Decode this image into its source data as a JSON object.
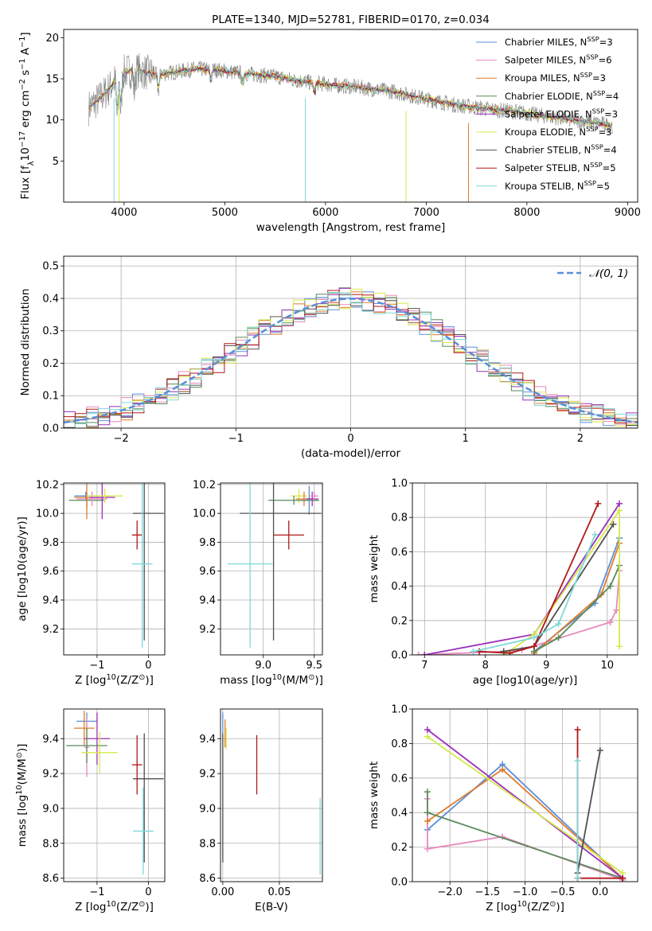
{
  "chart_data": [
    {
      "id": "spectrum",
      "type": "line",
      "title": "PLATE=1340, MJD=52781, FIBERID=0170, z=0.034",
      "xlabel": "wavelength [Angstrom, rest frame]",
      "ylabel_parts": [
        "Flux [f",
        "λ",
        "10",
        "−17",
        " erg cm",
        "−2",
        " s",
        "−1",
        " A",
        "−1",
        "]"
      ],
      "xlim": [
        3400,
        9100
      ],
      "ylim": [
        0,
        21
      ],
      "xticks": [
        4000,
        5000,
        6000,
        7000,
        8000,
        9000
      ],
      "yticks": [
        5,
        10,
        15,
        20
      ],
      "legend_position": "top-right",
      "continuum": {
        "x": [
          3650,
          3750,
          3850,
          3950,
          4050,
          4150,
          4300,
          4500,
          4700,
          4900,
          5100,
          5300,
          5500,
          5700,
          5900,
          6100,
          6300,
          6500,
          6700,
          6900,
          7100,
          7300,
          7500,
          7700,
          7900,
          8100,
          8300,
          8500,
          8700,
          8850
        ],
        "y": [
          11.5,
          12.5,
          13.8,
          15.5,
          16.0,
          16.0,
          15.5,
          15.8,
          16.2,
          16.1,
          15.8,
          15.5,
          15.3,
          14.8,
          14.5,
          14.2,
          14.0,
          13.7,
          13.4,
          12.8,
          12.3,
          11.8,
          11.5,
          11.2,
          11.0,
          10.6,
          10.3,
          9.9,
          9.6,
          9.3
        ]
      },
      "series": [
        {
          "name_parts": [
            "Chabrier MILES, N",
            "SSP",
            "=3"
          ],
          "color": "#5b8fd9"
        },
        {
          "name_parts": [
            "Salpeter MILES, N",
            "SSP",
            "=6"
          ],
          "color": "#e888be"
        },
        {
          "name_parts": [
            "Kroupa MILES, N",
            "SSP",
            "=3"
          ],
          "color": "#e07b2a"
        },
        {
          "name_parts": [
            "Chabrier ELODIE, N",
            "SSP",
            "=4"
          ],
          "color": "#5a8a5a"
        },
        {
          "name_parts": [
            "Salpeter ELODIE, N",
            "SSP",
            "=3"
          ],
          "color": "#9b30b8"
        },
        {
          "name_parts": [
            "Kroupa ELODIE, N",
            "SSP",
            "=3"
          ],
          "color": "#d7e84a"
        },
        {
          "name_parts": [
            "Chabrier STELIB, N",
            "SSP",
            "=4"
          ],
          "color": "#505050"
        },
        {
          "name_parts": [
            "Salpeter STELIB, N",
            "SSP",
            "=5"
          ],
          "color": "#b01818"
        },
        {
          "name_parts": [
            "Kroupa STELIB, N",
            "SSP",
            "=5"
          ],
          "color": "#7fd8d8"
        }
      ]
    },
    {
      "id": "residuals",
      "type": "histogram",
      "xlabel": "(data-model)/error",
      "ylabel": "Normed distribution",
      "xlim": [
        -2.5,
        2.5
      ],
      "ylim": [
        0,
        0.53
      ],
      "xticks": [
        -2,
        -1,
        0,
        1,
        2
      ],
      "yticks": [
        0.0,
        0.1,
        0.2,
        0.3,
        0.4,
        0.5
      ],
      "grid": true,
      "legend_position": "top-right",
      "legend": "𝒩(0, 1)",
      "bin_width": 0.1,
      "bin_start": -2.5,
      "reference_curve": {
        "name": "𝒩(0, 1)",
        "mean": 0,
        "sd": 1,
        "color": "#5b8fd9"
      }
    },
    {
      "id": "age_vs_Z",
      "type": "errorbar",
      "xlabel_parts": [
        "Z [log",
        "10",
        "(Z/Z",
        "⊙",
        ")]"
      ],
      "ylabel": "age  [log10(age/yr)]",
      "xlim": [
        -1.65,
        0.32
      ],
      "ylim": [
        9.02,
        10.21
      ],
      "xticks": [
        -1,
        0
      ],
      "yticks": [
        9.2,
        9.4,
        9.6,
        9.8,
        10.0,
        10.2
      ],
      "grid": true,
      "points": [
        {
          "x": -1.2,
          "y": 10.09,
          "xerr": 0.35,
          "yerr": 0.05,
          "color": "#5a8a5a"
        },
        {
          "x": -1.22,
          "y": 10.12,
          "xerr": 0.22,
          "yerr": 0.03,
          "color": "#5b8fd9"
        },
        {
          "x": -1.1,
          "y": 10.1,
          "xerr": 0.3,
          "yerr": 0.05,
          "color": "#e888be"
        },
        {
          "x": -1.2,
          "y": 10.11,
          "xerr": 0.25,
          "yerr": 0.15,
          "color": "#e07b2a"
        },
        {
          "x": -0.9,
          "y": 10.11,
          "xerr": 0.25,
          "yerr": 0.15,
          "color": "#9b30b8"
        },
        {
          "x": -0.85,
          "y": 10.12,
          "xerr": 0.35,
          "yerr": 0.05,
          "color": "#d7e84a"
        },
        {
          "x": 0.0,
          "y": 10.0,
          "xerr": 0.3,
          "yerr": 0.0,
          "color": "#505050"
        },
        {
          "x": -0.08,
          "y": 10.0,
          "xerr": 0.0,
          "yerr": 0.88,
          "color": "#505050"
        },
        {
          "x": -0.22,
          "y": 9.85,
          "xerr": 0.1,
          "yerr": 0.1,
          "color": "#b01818"
        },
        {
          "x": -0.12,
          "y": 9.65,
          "xerr": 0.2,
          "yerr": 0.58,
          "color": "#7fd8d8"
        }
      ]
    },
    {
      "id": "age_vs_mass",
      "type": "errorbar",
      "xlabel_parts": [
        "mass [log",
        "10",
        "(M/M",
        "⊙",
        ")]"
      ],
      "ylabel": "",
      "xlim": [
        8.58,
        9.58
      ],
      "ylim": [
        9.02,
        10.21
      ],
      "xticks": [
        9.0,
        9.5
      ],
      "yticks": [
        9.2,
        9.4,
        9.6,
        9.8,
        10.0,
        10.2
      ],
      "grid": true,
      "points": [
        {
          "x": 9.35,
          "y": 10.12,
          "xerr": 0.08,
          "yerr": 0.05,
          "color": "#d7e84a"
        },
        {
          "x": 9.4,
          "y": 10.1,
          "xerr": 0.08,
          "yerr": 0.05,
          "color": "#e07b2a"
        },
        {
          "x": 9.45,
          "y": 10.09,
          "xerr": 0.08,
          "yerr": 0.1,
          "color": "#5b8fd9"
        },
        {
          "x": 9.48,
          "y": 10.1,
          "xerr": 0.06,
          "yerr": 0.05,
          "color": "#9b30b8"
        },
        {
          "x": 9.5,
          "y": 10.12,
          "xerr": 0.04,
          "yerr": 0.03,
          "color": "#e888be"
        },
        {
          "x": 9.3,
          "y": 10.09,
          "xerr": 0.25,
          "yerr": 0.03,
          "color": "#5a8a5a"
        },
        {
          "x": 9.17,
          "y": 10.0,
          "xerr": 0.4,
          "yerr": 0.0,
          "color": "#505050"
        },
        {
          "x": 9.1,
          "y": 10.0,
          "xerr": 0.0,
          "yerr": 0.88,
          "color": "#505050"
        },
        {
          "x": 9.25,
          "y": 9.85,
          "xerr": 0.15,
          "yerr": 0.1,
          "color": "#b01818"
        },
        {
          "x": 8.87,
          "y": 9.65,
          "xerr": 0.22,
          "yerr": 0.58,
          "color": "#7fd8d8"
        }
      ]
    },
    {
      "id": "weight_vs_age",
      "type": "line",
      "xlabel": "age  [log10(age/yr)]",
      "ylabel": "mass weight",
      "xlim": [
        6.8,
        10.5
      ],
      "ylim": [
        0,
        1
      ],
      "xticks": [
        7,
        8,
        9,
        10
      ],
      "yticks": [
        0.0,
        0.2,
        0.4,
        0.6,
        0.8,
        1.0
      ],
      "grid": true,
      "series": [
        {
          "color": "#5b8fd9",
          "x": [
            8.8,
            9.8,
            10.2
          ],
          "y": [
            0.02,
            0.3,
            0.68
          ]
        },
        {
          "color": "#e888be",
          "x": [
            6.9,
            8.3,
            8.6,
            10.05,
            10.15,
            10.2
          ],
          "y": [
            0.0,
            0.02,
            0.03,
            0.19,
            0.26,
            0.49
          ]
        },
        {
          "color": "#e07b2a",
          "x": [
            8.8,
            9.9,
            10.2
          ],
          "y": [
            0.01,
            0.35,
            0.65
          ]
        },
        {
          "color": "#5a8a5a",
          "x": [
            8.8,
            9.2,
            10.05,
            10.2
          ],
          "y": [
            0.02,
            0.1,
            0.4,
            0.52
          ]
        },
        {
          "color": "#9b30b8",
          "x": [
            7.0,
            8.8,
            10.2
          ],
          "y": [
            0.0,
            0.12,
            0.88
          ]
        },
        {
          "color": "#d7e84a",
          "x": [
            8.3,
            8.8,
            10.2,
            10.2
          ],
          "y": [
            0.0,
            0.12,
            0.84,
            0.05
          ]
        },
        {
          "color": "#505050",
          "x": [
            8.3,
            8.8,
            10.1
          ],
          "y": [
            0.02,
            0.05,
            0.76
          ]
        },
        {
          "color": "#b01818",
          "x": [
            7.9,
            8.4,
            8.8,
            9.85
          ],
          "y": [
            0.02,
            0.01,
            0.05,
            0.88
          ]
        },
        {
          "color": "#7fd8d8",
          "x": [
            7.8,
            8.8,
            9.2,
            9.8
          ],
          "y": [
            0.02,
            0.1,
            0.18,
            0.7
          ]
        }
      ]
    },
    {
      "id": "mass_vs_Z",
      "type": "errorbar",
      "xlabel_parts": [
        "Z [log",
        "10",
        "(Z/Z",
        "⊙",
        ")]"
      ],
      "ylabel_parts": [
        "mass [log",
        "10",
        "(M/M",
        "⊙",
        ")]"
      ],
      "xlim": [
        -1.65,
        0.32
      ],
      "ylim": [
        8.58,
        9.57
      ],
      "xticks": [
        -1,
        0
      ],
      "yticks": [
        8.6,
        8.8,
        9.0,
        9.2,
        9.4
      ],
      "grid": true,
      "points": [
        {
          "x": -1.2,
          "y": 9.5,
          "xerr": 0.2,
          "yerr": 0.05,
          "color": "#5b8fd9"
        },
        {
          "x": -1.25,
          "y": 9.46,
          "xerr": 0.2,
          "yerr": 0.1,
          "color": "#e07b2a"
        },
        {
          "x": -1.2,
          "y": 9.35,
          "xerr": 0.05,
          "yerr": 0.17,
          "color": "#e888be"
        },
        {
          "x": -1.0,
          "y": 9.4,
          "xerr": 0.25,
          "yerr": 0.15,
          "color": "#9b30b8"
        },
        {
          "x": -1.2,
          "y": 9.36,
          "xerr": 0.4,
          "yerr": 0.1,
          "color": "#5a8a5a"
        },
        {
          "x": -0.95,
          "y": 9.32,
          "xerr": 0.35,
          "yerr": 0.12,
          "color": "#d7e84a"
        },
        {
          "x": 0.0,
          "y": 9.17,
          "xerr": 0.3,
          "yerr": 0.0,
          "color": "#505050"
        },
        {
          "x": -0.08,
          "y": 9.06,
          "xerr": 0.0,
          "yerr": 0.37,
          "color": "#505050"
        },
        {
          "x": -0.22,
          "y": 9.25,
          "xerr": 0.1,
          "yerr": 0.17,
          "color": "#b01818"
        },
        {
          "x": -0.1,
          "y": 8.87,
          "xerr": 0.2,
          "yerr": 0.25,
          "color": "#7fd8d8"
        }
      ]
    },
    {
      "id": "mass_vs_ebv",
      "type": "errorbar",
      "xlabel": "E(B-V)",
      "ylabel": "",
      "xlim": [
        -0.002,
        0.088
      ],
      "ylim": [
        8.58,
        9.57
      ],
      "xticks": [
        0.0,
        0.05
      ],
      "yticks": [
        8.6,
        8.8,
        9.0,
        9.2,
        9.4
      ],
      "grid": true,
      "points": [
        {
          "x": 0.0,
          "y": 9.45,
          "xerr": 0.0,
          "yerr": 0.1,
          "color": "#5b8fd9"
        },
        {
          "x": 0.002,
          "y": 9.43,
          "xerr": 0.0,
          "yerr": 0.08,
          "color": "#e07b2a"
        },
        {
          "x": 0.003,
          "y": 9.4,
          "xerr": 0.0,
          "yerr": 0.06,
          "color": "#d7e84a"
        },
        {
          "x": 0.0,
          "y": 9.06,
          "xerr": 0.0,
          "yerr": 0.37,
          "color": "#505050"
        },
        {
          "x": 0.03,
          "y": 9.25,
          "xerr": 0.0,
          "yerr": 0.17,
          "color": "#b01818"
        },
        {
          "x": 0.086,
          "y": 8.84,
          "xerr": 0.0,
          "yerr": 0.22,
          "color": "#7fd8d8"
        }
      ]
    },
    {
      "id": "weight_vs_Z",
      "type": "line",
      "xlabel_parts": [
        "Z [log",
        "10",
        "(Z/Z",
        "⊙",
        ")]"
      ],
      "ylabel": "mass weight",
      "xlim": [
        -2.5,
        0.5
      ],
      "ylim": [
        0,
        1
      ],
      "xticks": [
        -2.0,
        -1.5,
        -1.0,
        -0.5,
        0.0
      ],
      "yticks": [
        0.0,
        0.2,
        0.4,
        0.6,
        0.8,
        1.0
      ],
      "grid": true,
      "series": [
        {
          "color": "#5b8fd9",
          "x": [
            -2.3,
            -1.3,
            0.3
          ],
          "y": [
            0.3,
            0.68,
            0.02
          ]
        },
        {
          "color": "#e888be",
          "x": [
            -2.3,
            -2.3,
            -1.3,
            0.3
          ],
          "y": [
            0.48,
            0.19,
            0.26,
            0.01
          ]
        },
        {
          "color": "#e07b2a",
          "x": [
            -2.3,
            -1.3,
            0.3
          ],
          "y": [
            0.35,
            0.65,
            0.02
          ]
        },
        {
          "color": "#5a8a5a",
          "x": [
            -2.3,
            -2.3,
            0.3
          ],
          "y": [
            0.52,
            0.4,
            0.02
          ]
        },
        {
          "color": "#9b30b8",
          "x": [
            -2.3,
            0.3
          ],
          "y": [
            0.88,
            0.02
          ]
        },
        {
          "color": "#d7e84a",
          "x": [
            -2.3,
            0.3
          ],
          "y": [
            0.84,
            0.05
          ]
        },
        {
          "color": "#505050",
          "x": [
            -0.3,
            -0.3,
            0.0
          ],
          "y": [
            0.02,
            0.05,
            0.76
          ]
        },
        {
          "color": "#b01818",
          "x": [
            -0.3,
            -0.3,
            0.3
          ],
          "y": [
            0.88,
            0.02,
            0.02
          ]
        },
        {
          "color": "#7fd8d8",
          "x": [
            -0.3,
            -0.3
          ],
          "y": [
            0.7,
            0.02
          ]
        }
      ]
    }
  ]
}
